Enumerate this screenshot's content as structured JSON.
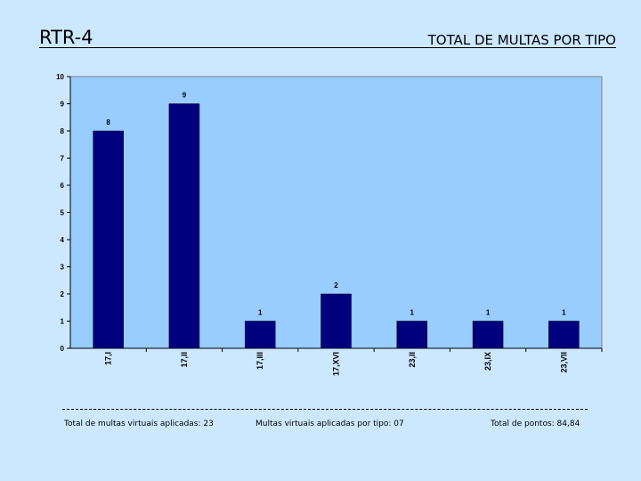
{
  "header": {
    "left_title": "RTR-4",
    "right_title": "TOTAL DE MULTAS POR TIPO"
  },
  "chart_data": {
    "type": "bar",
    "categories": [
      "17,I",
      "17,II",
      "17,III",
      "17,XVI",
      "23,II",
      "23,IX",
      "23,VII"
    ],
    "values": [
      8,
      9,
      1,
      2,
      1,
      1,
      1
    ],
    "ylim": [
      0,
      10
    ],
    "yticks": [
      0,
      1,
      2,
      3,
      4,
      5,
      6,
      7,
      8,
      9,
      10
    ],
    "data_labels": true,
    "legend": "none",
    "colors": {
      "bar": "#00007f",
      "plot_bg": "#99ccff",
      "page_bg": "#cce8ff"
    }
  },
  "footer": {
    "total_multas": "Total de multas virtuais aplicadas: 23",
    "multas_por_tipo": "Multas virtuais aplicadas por tipo: 07",
    "total_pontos": "Total de pontos: 84,84"
  }
}
